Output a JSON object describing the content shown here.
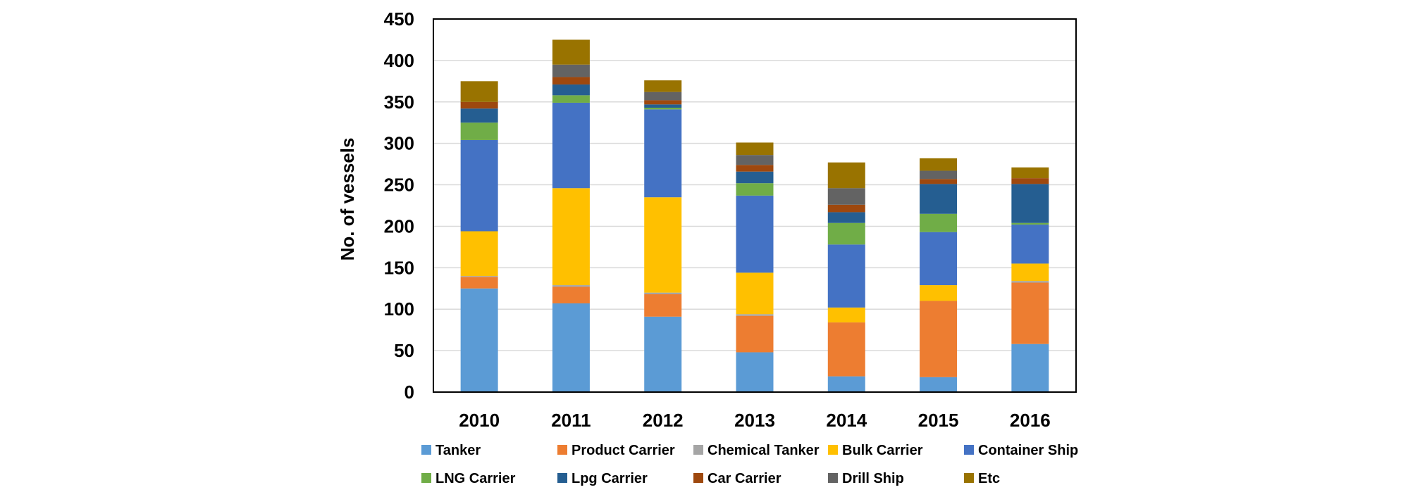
{
  "chart_data": {
    "type": "bar",
    "stacked": true,
    "title": "",
    "xlabel": "",
    "ylabel": "No. of vessels",
    "ylim": [
      0,
      450
    ],
    "yticks": [
      0,
      50,
      100,
      150,
      200,
      250,
      300,
      350,
      400,
      450
    ],
    "grid": true,
    "legend_position": "bottom",
    "categories": [
      "2010",
      "2011",
      "2012",
      "2013",
      "2014",
      "2015",
      "2016"
    ],
    "series": [
      {
        "name": "Tanker",
        "color": "#5B9BD5",
        "values": [
          125,
          107,
          91,
          48,
          19,
          18,
          58
        ]
      },
      {
        "name": "Product Carrier",
        "color": "#ED7D31",
        "values": [
          14,
          20,
          27,
          44,
          65,
          92,
          74
        ]
      },
      {
        "name": "Chemical Tanker",
        "color": "#A5A5A5",
        "values": [
          1,
          2,
          2,
          2,
          0,
          0,
          2
        ]
      },
      {
        "name": "Bulk Carrier",
        "color": "#FFC000",
        "values": [
          54,
          117,
          115,
          50,
          18,
          19,
          21
        ]
      },
      {
        "name": "Container Ship",
        "color": "#4472C4",
        "values": [
          110,
          103,
          106,
          93,
          76,
          64,
          47
        ]
      },
      {
        "name": "LNG Carrier",
        "color": "#70AD47",
        "values": [
          21,
          9,
          2,
          15,
          26,
          22,
          2
        ]
      },
      {
        "name": "Lpg Carrier",
        "color": "#255E91",
        "values": [
          17,
          13,
          4,
          14,
          13,
          36,
          47
        ]
      },
      {
        "name": "Car Carrier",
        "color": "#9E480E",
        "values": [
          8,
          9,
          5,
          8,
          9,
          6,
          7
        ]
      },
      {
        "name": "Drill Ship",
        "color": "#636363",
        "values": [
          0,
          15,
          10,
          12,
          20,
          10,
          0
        ]
      },
      {
        "name": "Etc",
        "color": "#997300",
        "values": [
          25,
          30,
          14,
          15,
          31,
          15,
          13
        ]
      }
    ]
  }
}
